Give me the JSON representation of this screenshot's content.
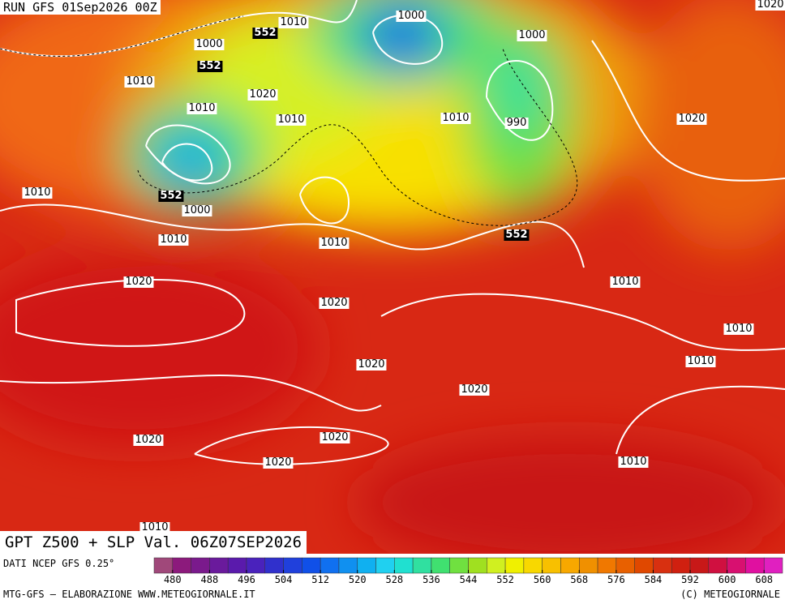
{
  "header": {
    "run": "RUN GFS 01Sep2026 00Z"
  },
  "map": {
    "title": "GPT Z500 + SLP Val. 06Z07SEP2026",
    "isobar_labels": [
      "1010",
      "552",
      "1000",
      "552",
      "1000",
      "1000",
      "1020",
      "1010",
      "1020",
      "1010",
      "1010",
      "1010",
      "990",
      "1020",
      "1010",
      "552",
      "1000",
      "1010",
      "1010",
      "552",
      "1020",
      "1010",
      "1020",
      "1010",
      "1010",
      "1020",
      "1020",
      "1020",
      "1020",
      "1020",
      "1010",
      "1010"
    ]
  },
  "colorbar": {
    "label": "DATI NCEP GFS 0.25°",
    "range": [
      476,
      612
    ],
    "ticks": [
      480,
      488,
      496,
      504,
      512,
      520,
      528,
      536,
      544,
      552,
      560,
      568,
      576,
      584,
      592,
      600,
      608
    ],
    "colors": [
      "#a0487a",
      "#8c1a7c",
      "#7a1a8c",
      "#6a1a9c",
      "#5a1aac",
      "#4a22bc",
      "#3030cc",
      "#2040dc",
      "#1050e8",
      "#1070f0",
      "#1090f0",
      "#10b0f0",
      "#20d0f0",
      "#20e0d0",
      "#30e0a0",
      "#40e070",
      "#70e040",
      "#a0e020",
      "#d0f020",
      "#f0f000",
      "#f8d800",
      "#f8c000",
      "#f8a800",
      "#f09000",
      "#f07800",
      "#e86000",
      "#e04800",
      "#d83010",
      "#d02010",
      "#c81818",
      "#d01040",
      "#d81070",
      "#e010a0",
      "#e020c0"
    ]
  },
  "footer": {
    "left": "MTG-GFS — ELABORAZIONE WWW.METEOGIORNALE.IT",
    "right": "(C) METEOGIORNALE"
  }
}
